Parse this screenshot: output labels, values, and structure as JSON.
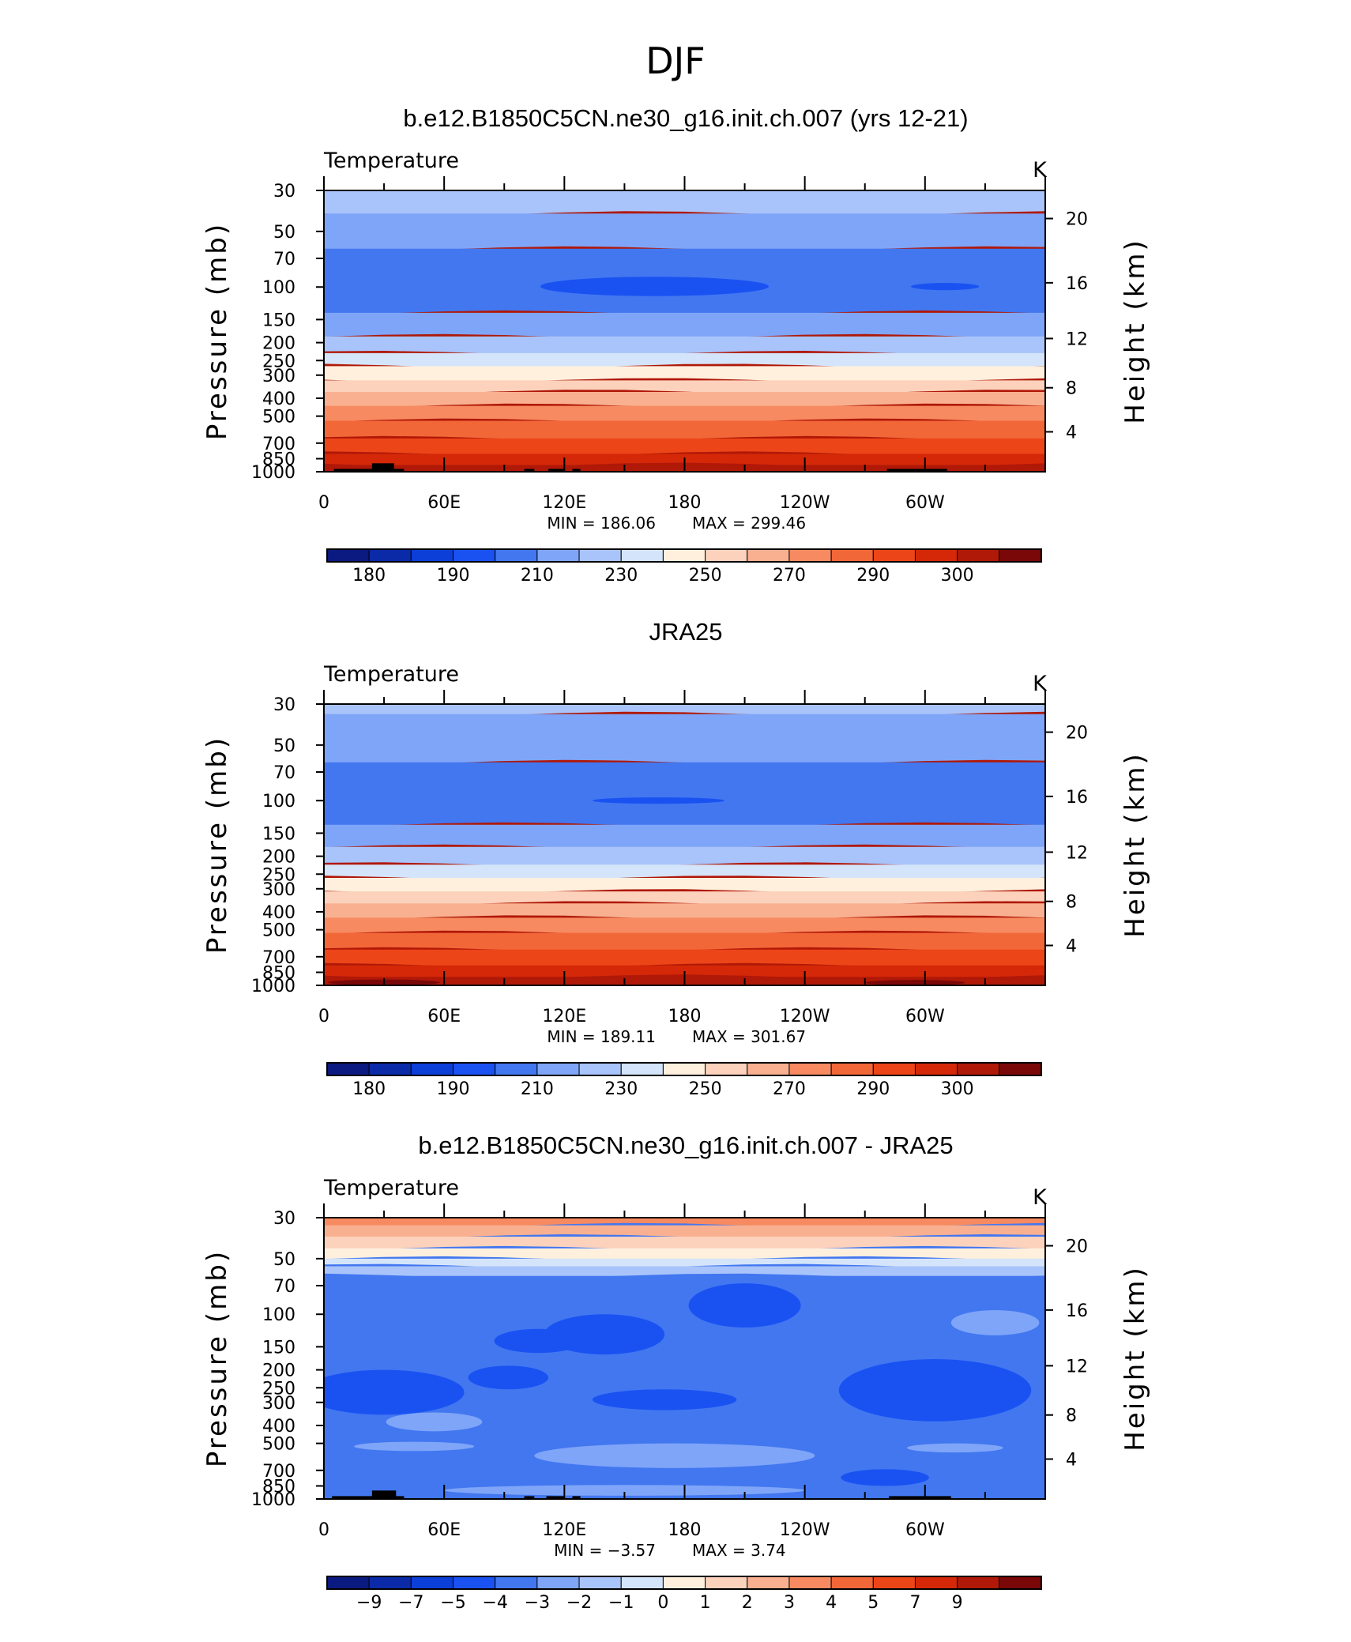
{
  "figure": {
    "title": "DJF"
  },
  "chart_data": [
    {
      "type": "heatmap",
      "title": "b.e12.B1850C5CN.ne30_g16.init.ch.007 (yrs 12-21)",
      "variable": "Temperature",
      "units": "K",
      "xlabel": "",
      "ylabel": "Pressure (mb)",
      "ylabel_right": "Height (km)",
      "x_ticks": [
        "0",
        "60E",
        "120E",
        "180",
        "120W",
        "60W"
      ],
      "y_ticks": [
        "30",
        "50",
        "70",
        "100",
        "150",
        "200",
        "250",
        "300",
        "400",
        "500",
        "700",
        "850",
        "1000"
      ],
      "y_ticks_right": [
        "20",
        "16",
        "12",
        "8",
        "4"
      ],
      "ylim": [
        1000,
        30
      ],
      "y_scale": "log",
      "min_text": "MIN = 186.06",
      "max_text": "MAX = 299.46",
      "colorbar_labels": [
        "180",
        "190",
        "210",
        "230",
        "250",
        "270",
        "290",
        "300"
      ],
      "layers_top_to_bottom": [
        {
          "p_bottom": 40,
          "level": 6
        },
        {
          "p_bottom": 62,
          "level": 5
        },
        {
          "p_bottom": 138,
          "level": 4
        },
        {
          "p_bottom": 185,
          "level": 5
        },
        {
          "p_bottom": 228,
          "level": 6
        },
        {
          "p_bottom": 268,
          "level": 7
        },
        {
          "p_bottom": 320,
          "level": 8
        },
        {
          "p_bottom": 370,
          "level": 9
        },
        {
          "p_bottom": 440,
          "level": 10
        },
        {
          "p_bottom": 530,
          "level": 11
        },
        {
          "p_bottom": 660,
          "level": 12
        },
        {
          "p_bottom": 800,
          "level": 13
        },
        {
          "p_bottom": 920,
          "level": 14
        },
        {
          "p_bottom": 1000,
          "level": 15
        }
      ],
      "features": [
        {
          "kind": "ellipse",
          "lon": 165,
          "p": 100,
          "lon_half_width": 57,
          "p_top": 88,
          "p_bottom": 112,
          "level": 3
        },
        {
          "kind": "ellipse",
          "lon": 310,
          "p": 100,
          "lon_half_width": 17,
          "p_top": 95,
          "p_bottom": 104,
          "level": 3
        }
      ],
      "topography": [
        {
          "lon_start": 5,
          "lon_end": 40,
          "p_top": 965
        },
        {
          "lon_start": 24,
          "lon_end": 35,
          "p_top": 900
        },
        {
          "lon_start": 100,
          "lon_end": 105,
          "p_top": 965
        },
        {
          "lon_start": 112,
          "lon_end": 120,
          "p_top": 965
        },
        {
          "lon_start": 124,
          "lon_end": 128,
          "p_top": 965
        },
        {
          "lon_start": 281,
          "lon_end": 311,
          "p_top": 965
        }
      ]
    },
    {
      "type": "heatmap",
      "title": "JRA25",
      "variable": "Temperature",
      "units": "K",
      "xlabel": "",
      "ylabel": "Pressure (mb)",
      "ylabel_right": "Height (km)",
      "x_ticks": [
        "0",
        "60E",
        "120E",
        "180",
        "120W",
        "60W"
      ],
      "y_ticks": [
        "30",
        "50",
        "70",
        "100",
        "150",
        "200",
        "250",
        "300",
        "400",
        "500",
        "700",
        "850",
        "1000"
      ],
      "y_ticks_right": [
        "20",
        "16",
        "12",
        "8",
        "4"
      ],
      "ylim": [
        1000,
        30
      ],
      "y_scale": "log",
      "min_text": "MIN = 189.11",
      "max_text": "MAX = 301.67",
      "colorbar_labels": [
        "180",
        "190",
        "210",
        "230",
        "250",
        "270",
        "290",
        "300"
      ],
      "layers_top_to_bottom": [
        {
          "p_bottom": 34,
          "level": 6
        },
        {
          "p_bottom": 62,
          "level": 5
        },
        {
          "p_bottom": 135,
          "level": 4
        },
        {
          "p_bottom": 178,
          "level": 5
        },
        {
          "p_bottom": 222,
          "level": 6
        },
        {
          "p_bottom": 262,
          "level": 7
        },
        {
          "p_bottom": 310,
          "level": 8
        },
        {
          "p_bottom": 360,
          "level": 9
        },
        {
          "p_bottom": 430,
          "level": 10
        },
        {
          "p_bottom": 520,
          "level": 11
        },
        {
          "p_bottom": 640,
          "level": 12
        },
        {
          "p_bottom": 780,
          "level": 13
        },
        {
          "p_bottom": 900,
          "level": 14
        },
        {
          "p_bottom": 1000,
          "level": 15
        }
      ],
      "features": [
        {
          "kind": "ellipse",
          "lon": 167,
          "p": 100,
          "lon_half_width": 33,
          "p_top": 96,
          "p_bottom": 104,
          "level": 3
        },
        {
          "kind": "ellipse",
          "lon": 30,
          "p": 960,
          "lon_half_width": 28,
          "p_top": 930,
          "p_bottom": 1000,
          "level": 16
        },
        {
          "kind": "ellipse",
          "lon": 295,
          "p": 960,
          "lon_half_width": 25,
          "p_top": 935,
          "p_bottom": 1000,
          "level": 16
        }
      ],
      "topography": []
    },
    {
      "type": "heatmap",
      "title": "b.e12.B1850C5CN.ne30_g16.init.ch.007 - JRA25",
      "variable": "Temperature",
      "units": "K",
      "xlabel": "",
      "ylabel": "Pressure (mb)",
      "ylabel_right": "Height (km)",
      "x_ticks": [
        "0",
        "60E",
        "120E",
        "180",
        "120W",
        "60W"
      ],
      "y_ticks": [
        "30",
        "50",
        "70",
        "100",
        "150",
        "200",
        "250",
        "300",
        "400",
        "500",
        "700",
        "850",
        "1000"
      ],
      "y_ticks_right": [
        "20",
        "16",
        "12",
        "8",
        "4"
      ],
      "ylim": [
        1000,
        30
      ],
      "y_scale": "log",
      "min_text": "MIN = −3.57",
      "max_text": "MAX = 3.74",
      "colorbar_labels": [
        "−9",
        "−7",
        "−5",
        "−4",
        "−3",
        "−2",
        "−1",
        "0",
        "1",
        "2",
        "3",
        "4",
        "5",
        "7",
        "9"
      ],
      "layers_top_to_bottom": [
        {
          "p_bottom": 33,
          "level": 11
        },
        {
          "p_bottom": 38,
          "level": 10
        },
        {
          "p_bottom": 44,
          "level": 9
        },
        {
          "p_bottom": 50,
          "level": 8
        },
        {
          "p_bottom": 55,
          "level": 7
        },
        {
          "p_bottom": 62,
          "level": 6
        },
        {
          "p_bottom": 1000,
          "level": 4
        }
      ],
      "features": [
        {
          "kind": "ellipse",
          "lon": 140,
          "p": 128,
          "lon_half_width": 30,
          "p_top": 100,
          "p_bottom": 165,
          "level": 3
        },
        {
          "kind": "ellipse",
          "lon": 107,
          "p": 140,
          "lon_half_width": 22,
          "p_top": 120,
          "p_bottom": 162,
          "level": 3
        },
        {
          "kind": "ellipse",
          "lon": 210,
          "p": 82,
          "lon_half_width": 28,
          "p_top": 68,
          "p_bottom": 118,
          "level": 3
        },
        {
          "kind": "ellipse",
          "lon": 30,
          "p": 265,
          "lon_half_width": 40,
          "p_top": 200,
          "p_bottom": 350,
          "level": 3
        },
        {
          "kind": "ellipse",
          "lon": 92,
          "p": 225,
          "lon_half_width": 20,
          "p_top": 190,
          "p_bottom": 255,
          "level": 3
        },
        {
          "kind": "ellipse",
          "lon": 170,
          "p": 290,
          "lon_half_width": 36,
          "p_top": 255,
          "p_bottom": 330,
          "level": 3
        },
        {
          "kind": "ellipse",
          "lon": 305,
          "p": 250,
          "lon_half_width": 48,
          "p_top": 175,
          "p_bottom": 380,
          "level": 3
        },
        {
          "kind": "ellipse",
          "lon": 335,
          "p": 110,
          "lon_half_width": 22,
          "p_top": 95,
          "p_bottom": 130,
          "level": 5
        },
        {
          "kind": "ellipse",
          "lon": 55,
          "p": 390,
          "lon_half_width": 24,
          "p_top": 340,
          "p_bottom": 430,
          "level": 5
        },
        {
          "kind": "ellipse",
          "lon": 45,
          "p": 520,
          "lon_half_width": 30,
          "p_top": 490,
          "p_bottom": 550,
          "level": 5
        },
        {
          "kind": "ellipse",
          "lon": 175,
          "p": 580,
          "lon_half_width": 70,
          "p_top": 500,
          "p_bottom": 680,
          "level": 5
        },
        {
          "kind": "ellipse",
          "lon": 315,
          "p": 530,
          "lon_half_width": 24,
          "p_top": 500,
          "p_bottom": 560,
          "level": 5
        },
        {
          "kind": "ellipse",
          "lon": 280,
          "p": 760,
          "lon_half_width": 22,
          "p_top": 690,
          "p_bottom": 850,
          "level": 3
        },
        {
          "kind": "ellipse",
          "lon": 150,
          "p": 900,
          "lon_half_width": 90,
          "p_top": 840,
          "p_bottom": 960,
          "level": 5
        }
      ],
      "topography": [
        {
          "lon_start": 4,
          "lon_end": 40,
          "p_top": 965
        },
        {
          "lon_start": 24,
          "lon_end": 36,
          "p_top": 900
        },
        {
          "lon_start": 100,
          "lon_end": 105,
          "p_top": 965
        },
        {
          "lon_start": 111,
          "lon_end": 120,
          "p_top": 965
        },
        {
          "lon_start": 124,
          "lon_end": 128,
          "p_top": 965
        },
        {
          "lon_start": 282,
          "lon_end": 313,
          "p_top": 965
        }
      ]
    }
  ],
  "colors": {
    "palette": [
      "#0a1a80",
      "#0a2aa8",
      "#0c3ed8",
      "#1a52f2",
      "#4277f0",
      "#7fa5f8",
      "#a9c4fa",
      "#d4e4fa",
      "#fff0de",
      "#fdd2bc",
      "#f9b090",
      "#f78a60",
      "#f26738",
      "#ec4518",
      "#d42808",
      "#b01808",
      "#7a0808"
    ],
    "topography": "#000000"
  }
}
